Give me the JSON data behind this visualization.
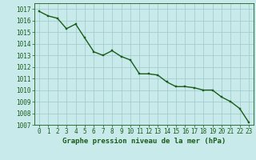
{
  "x": [
    0,
    1,
    2,
    3,
    4,
    5,
    6,
    7,
    8,
    9,
    10,
    11,
    12,
    13,
    14,
    15,
    16,
    17,
    18,
    19,
    20,
    21,
    22,
    23
  ],
  "y": [
    1016.8,
    1016.4,
    1016.2,
    1015.3,
    1015.7,
    1014.5,
    1013.3,
    1013.0,
    1013.4,
    1012.9,
    1012.6,
    1011.4,
    1011.4,
    1011.3,
    1010.7,
    1010.3,
    1010.3,
    1010.2,
    1010.0,
    1010.0,
    1009.4,
    1009.0,
    1008.4,
    1007.2
  ],
  "line_color": "#1a5c1a",
  "marker_color": "#1a5c1a",
  "background_color": "#c8eaea",
  "grid_color": "#9ec8c8",
  "text_color": "#1a5c1a",
  "xlabel": "Graphe pression niveau de la mer (hPa)",
  "ylim": [
    1007,
    1017.5
  ],
  "yticks": [
    1007,
    1008,
    1009,
    1010,
    1011,
    1012,
    1013,
    1014,
    1015,
    1016,
    1017
  ],
  "xticks": [
    0,
    1,
    2,
    3,
    4,
    5,
    6,
    7,
    8,
    9,
    10,
    11,
    12,
    13,
    14,
    15,
    16,
    17,
    18,
    19,
    20,
    21,
    22,
    23
  ],
  "tick_fontsize": 5.5,
  "label_fontsize": 6.5,
  "line_width": 1.0,
  "marker_size": 2.0
}
